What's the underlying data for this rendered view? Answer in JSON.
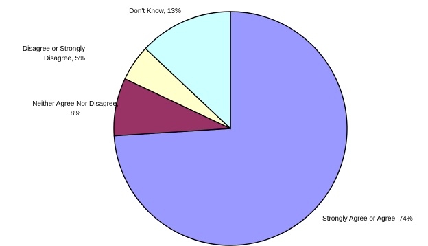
{
  "chart_data": {
    "type": "pie",
    "slices": [
      {
        "label": "Strongly Agree or Agree, 74%",
        "value": 74,
        "color": "#9999FF"
      },
      {
        "label": "Neither Agree Nor Disagree, 8%",
        "value": 8,
        "color": "#993366"
      },
      {
        "label": "Disagree or Strongly Disagree, 5%",
        "value": 5,
        "color": "#FFFFCC"
      },
      {
        "label": "Don't Know, 13%",
        "value": 13,
        "color": "#CCFFFF"
      }
    ],
    "labels": [
      {
        "lines": [
          "Strongly Agree or Agree, 74%"
        ]
      },
      {
        "lines": [
          "Neither Agree Nor Disagree,",
          "8%"
        ]
      },
      {
        "lines": [
          "Disagree or Strongly",
          "Disagree, 5%"
        ]
      },
      {
        "lines": [
          "Don't Know, 13%"
        ]
      }
    ],
    "legend": "none"
  }
}
